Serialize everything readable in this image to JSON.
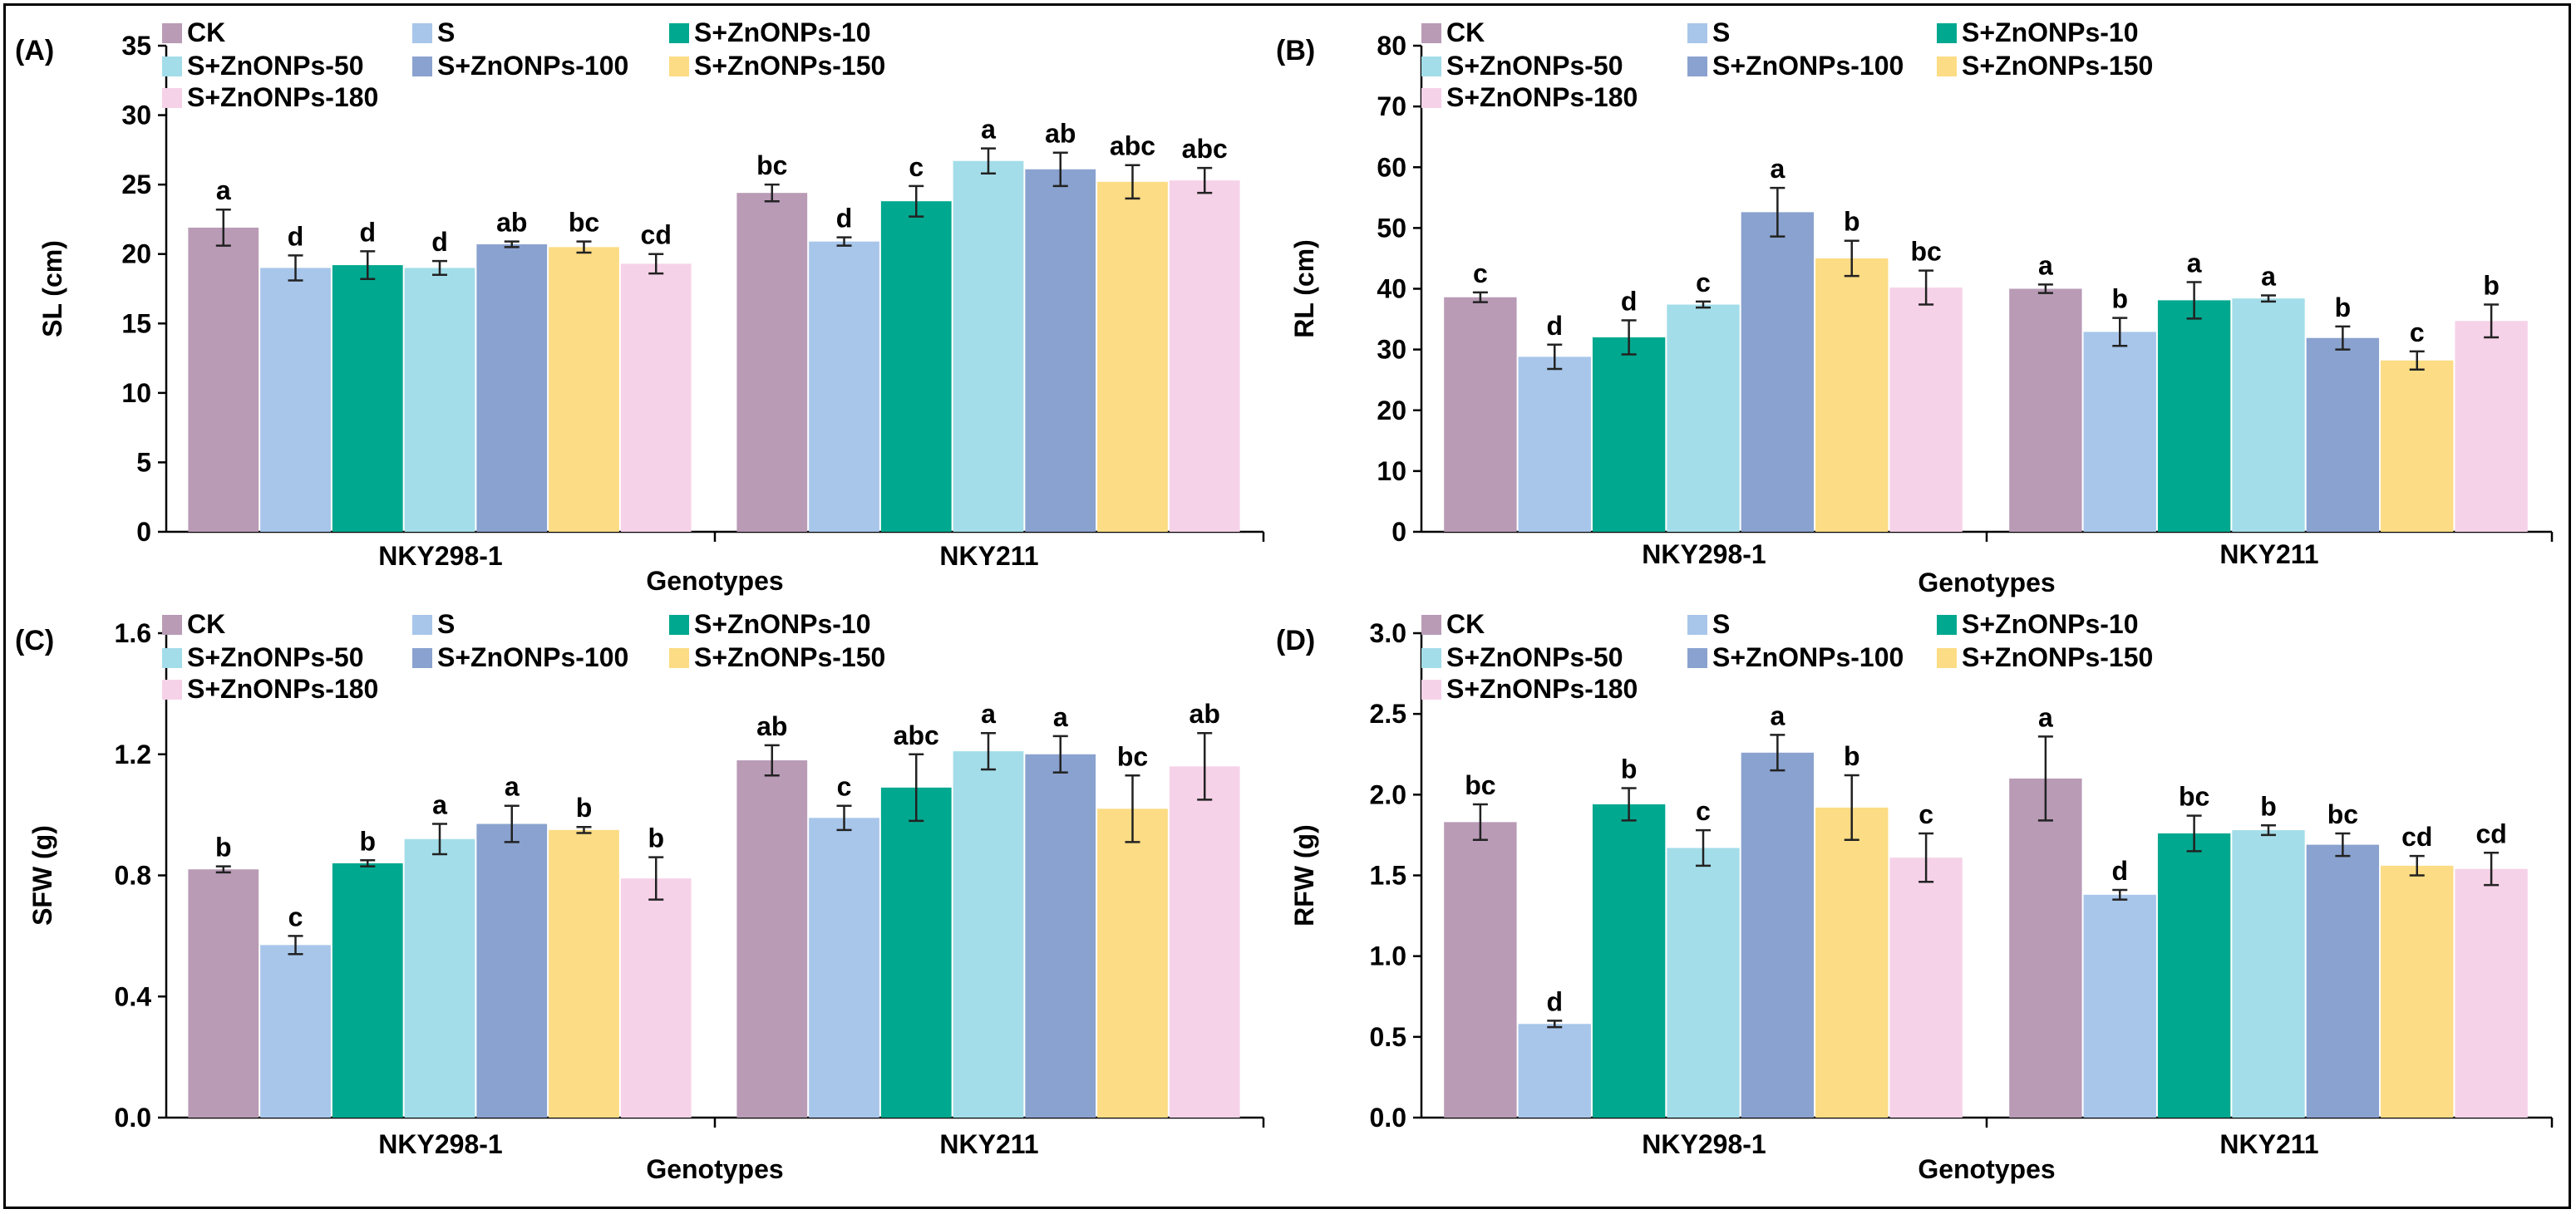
{
  "legend": [
    {
      "name": "CK",
      "color": "#b99bb6"
    },
    {
      "name": "S",
      "color": "#a8c6ea"
    },
    {
      "name": "S+ZnONPs-10",
      "color": "#00a88f"
    },
    {
      "name": "S+ZnONPs-50",
      "color": "#a3dde9"
    },
    {
      "name": "S+ZnONPs-100",
      "color": "#8aa2cf"
    },
    {
      "name": "S+ZnONPs-150",
      "color": "#fcdc84"
    },
    {
      "name": "S+ZnONPs-180",
      "color": "#f6d2e8"
    }
  ],
  "chart_data": [
    {
      "panel_label": "(A)",
      "type": "bar",
      "ylabel": "SL (cm)",
      "xlabel": "Genotypes",
      "ylim": [
        0,
        35
      ],
      "yticks": [
        "0",
        "5",
        "10",
        "15",
        "20",
        "25",
        "30",
        "35"
      ],
      "categories": [
        "NKY298-1",
        "NKY211"
      ],
      "series": [
        {
          "name": "CK",
          "values": [
            21.9,
            24.4
          ],
          "errors": [
            1.3,
            0.6
          ],
          "letters": [
            "a",
            "bc"
          ]
        },
        {
          "name": "S",
          "values": [
            19.0,
            20.9
          ],
          "errors": [
            0.9,
            0.3
          ],
          "letters": [
            "d",
            "d"
          ]
        },
        {
          "name": "S+ZnONPs-10",
          "values": [
            19.2,
            23.8
          ],
          "errors": [
            1.0,
            1.1
          ],
          "letters": [
            "d",
            "c"
          ]
        },
        {
          "name": "S+ZnONPs-50",
          "values": [
            19.0,
            26.7
          ],
          "errors": [
            0.5,
            0.9
          ],
          "letters": [
            "d",
            "a"
          ]
        },
        {
          "name": "S+ZnONPs-100",
          "values": [
            20.7,
            26.1
          ],
          "errors": [
            0.2,
            1.2
          ],
          "letters": [
            "ab",
            "ab"
          ]
        },
        {
          "name": "S+ZnONPs-150",
          "values": [
            20.5,
            25.2
          ],
          "errors": [
            0.4,
            1.2
          ],
          "letters": [
            "bc",
            "abc"
          ]
        },
        {
          "name": "S+ZnONPs-180",
          "values": [
            19.3,
            25.3
          ],
          "errors": [
            0.7,
            0.9
          ],
          "letters": [
            "cd",
            "abc"
          ]
        }
      ]
    },
    {
      "panel_label": "(B)",
      "type": "bar",
      "ylabel": "RL (cm)",
      "xlabel": "Genotypes",
      "ylim": [
        0,
        80
      ],
      "yticks": [
        "0",
        "10",
        "20",
        "30",
        "40",
        "50",
        "60",
        "70",
        "80"
      ],
      "categories": [
        "NKY298-1",
        "NKY211"
      ],
      "series": [
        {
          "name": "CK",
          "values": [
            38.6,
            40.0
          ],
          "errors": [
            0.8,
            0.7
          ],
          "letters": [
            "c",
            "a"
          ]
        },
        {
          "name": "S",
          "values": [
            28.8,
            32.9
          ],
          "errors": [
            2.0,
            2.3
          ],
          "letters": [
            "d",
            "b"
          ]
        },
        {
          "name": "S+ZnONPs-10",
          "values": [
            32.0,
            38.1
          ],
          "errors": [
            2.8,
            3.0
          ],
          "letters": [
            "d",
            "a"
          ]
        },
        {
          "name": "S+ZnONPs-50",
          "values": [
            37.4,
            38.4
          ],
          "errors": [
            0.5,
            0.5
          ],
          "letters": [
            "c",
            "a"
          ]
        },
        {
          "name": "S+ZnONPs-100",
          "values": [
            52.6,
            31.9
          ],
          "errors": [
            4.0,
            1.9
          ],
          "letters": [
            "a",
            "b"
          ]
        },
        {
          "name": "S+ZnONPs-150",
          "values": [
            45.0,
            28.2
          ],
          "errors": [
            2.9,
            1.5
          ],
          "letters": [
            "b",
            "c"
          ]
        },
        {
          "name": "S+ZnONPs-180",
          "values": [
            40.2,
            34.7
          ],
          "errors": [
            2.8,
            2.7
          ],
          "letters": [
            "bc",
            "b"
          ]
        }
      ]
    },
    {
      "panel_label": "(C)",
      "type": "bar",
      "ylabel": "SFW (g)",
      "xlabel": "Genotypes",
      "ylim": [
        0,
        1.6
      ],
      "yticks": [
        "0.0",
        "0.4",
        "0.8",
        "1.2",
        "1.6"
      ],
      "categories": [
        "NKY298-1",
        "NKY211"
      ],
      "series": [
        {
          "name": "CK",
          "values": [
            0.82,
            1.18
          ],
          "errors": [
            0.01,
            0.05
          ],
          "letters": [
            "b",
            "ab"
          ]
        },
        {
          "name": "S",
          "values": [
            0.57,
            0.99
          ],
          "errors": [
            0.03,
            0.04
          ],
          "letters": [
            "c",
            "c"
          ]
        },
        {
          "name": "S+ZnONPs-10",
          "values": [
            0.84,
            1.09
          ],
          "errors": [
            0.01,
            0.11
          ],
          "letters": [
            "b",
            "abc"
          ]
        },
        {
          "name": "S+ZnONPs-50",
          "values": [
            0.92,
            1.21
          ],
          "errors": [
            0.05,
            0.06
          ],
          "letters": [
            "a",
            "a"
          ]
        },
        {
          "name": "S+ZnONPs-100",
          "values": [
            0.97,
            1.2
          ],
          "errors": [
            0.06,
            0.06
          ],
          "letters": [
            "a",
            "a"
          ]
        },
        {
          "name": "S+ZnONPs-150",
          "values": [
            0.95,
            1.02
          ],
          "errors": [
            0.01,
            0.11
          ],
          "letters": [
            "b",
            "bc"
          ]
        },
        {
          "name": "S+ZnONPs-180",
          "values": [
            0.79,
            1.16
          ],
          "errors": [
            0.07,
            0.11
          ],
          "letters": [
            "b",
            "ab"
          ]
        }
      ]
    },
    {
      "panel_label": "(D)",
      "type": "bar",
      "ylabel": "RFW (g)",
      "xlabel": "Genotypes",
      "ylim": [
        0,
        3.0
      ],
      "yticks": [
        "0.0",
        "0.5",
        "1.0",
        "1.5",
        "2.0",
        "2.5",
        "3.0"
      ],
      "categories": [
        "NKY298-1",
        "NKY211"
      ],
      "series": [
        {
          "name": "CK",
          "values": [
            1.83,
            2.1
          ],
          "errors": [
            0.11,
            0.26
          ],
          "letters": [
            "bc",
            "a"
          ]
        },
        {
          "name": "S",
          "values": [
            0.58,
            1.38
          ],
          "errors": [
            0.02,
            0.03
          ],
          "letters": [
            "d",
            "d"
          ]
        },
        {
          "name": "S+ZnONPs-10",
          "values": [
            1.94,
            1.76
          ],
          "errors": [
            0.1,
            0.11
          ],
          "letters": [
            "b",
            "bc"
          ]
        },
        {
          "name": "S+ZnONPs-50",
          "values": [
            1.67,
            1.78
          ],
          "errors": [
            0.11,
            0.03
          ],
          "letters": [
            "c",
            "b"
          ]
        },
        {
          "name": "S+ZnONPs-100",
          "values": [
            2.26,
            1.69
          ],
          "errors": [
            0.11,
            0.07
          ],
          "letters": [
            "a",
            "bc"
          ]
        },
        {
          "name": "S+ZnONPs-150",
          "values": [
            1.92,
            1.56
          ],
          "errors": [
            0.2,
            0.06
          ],
          "letters": [
            "b",
            "cd"
          ]
        },
        {
          "name": "S+ZnONPs-180",
          "values": [
            1.61,
            1.54
          ],
          "errors": [
            0.15,
            0.1
          ],
          "letters": [
            "c",
            "cd"
          ]
        }
      ]
    }
  ]
}
